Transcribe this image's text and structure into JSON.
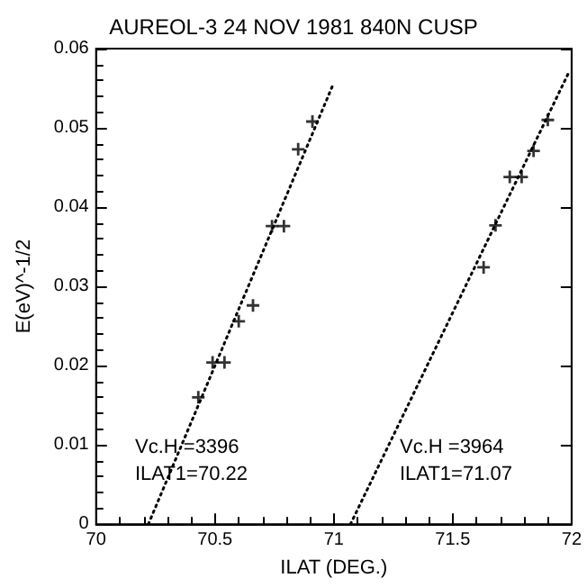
{
  "chart_data": {
    "type": "scatter",
    "title": "AUREOL-3 24 NOV 1981 840N CUSP",
    "xlabel": "ILAT (DEG.)",
    "ylabel": "E(eV)^-1/2",
    "xlim": [
      70,
      72
    ],
    "xticks": [
      70,
      70.5,
      71,
      71.5,
      72
    ],
    "ylim": [
      0,
      0.06
    ],
    "yticks": [
      0,
      0.01,
      0.02,
      0.03,
      0.04,
      0.05,
      0.06
    ],
    "marker": "cross",
    "grid": false,
    "series": [
      {
        "color": "#000000",
        "x": [
          70.43,
          70.49,
          70.54,
          70.6,
          70.66,
          70.74,
          70.79,
          70.85,
          70.91
        ],
        "values": [
          0.016,
          0.0204,
          0.0204,
          0.0256,
          0.0276,
          0.0376,
          0.0376,
          0.0473,
          0.0508
        ]
      },
      {
        "color": "#000000",
        "x": [
          71.63,
          71.68,
          71.74,
          71.79,
          71.84,
          71.9
        ],
        "values": [
          0.0324,
          0.0377,
          0.0438,
          0.0438,
          0.0471,
          0.051
        ]
      },
      {
        "type": "line",
        "color": "#000000",
        "line_style": "dotted",
        "marker": "none",
        "x": [
          70.22,
          71.0
        ],
        "values": [
          0,
          0.0557
        ]
      },
      {
        "type": "line",
        "color": "#000000",
        "line_style": "dotted",
        "marker": "none",
        "x": [
          71.07,
          71.99
        ],
        "values": [
          0,
          0.0571
        ]
      }
    ],
    "annotations": [
      "Vc.H =3396",
      "ILAT1=70.22",
      "Vc.H =3964",
      "ILAT1=71.07"
    ]
  }
}
